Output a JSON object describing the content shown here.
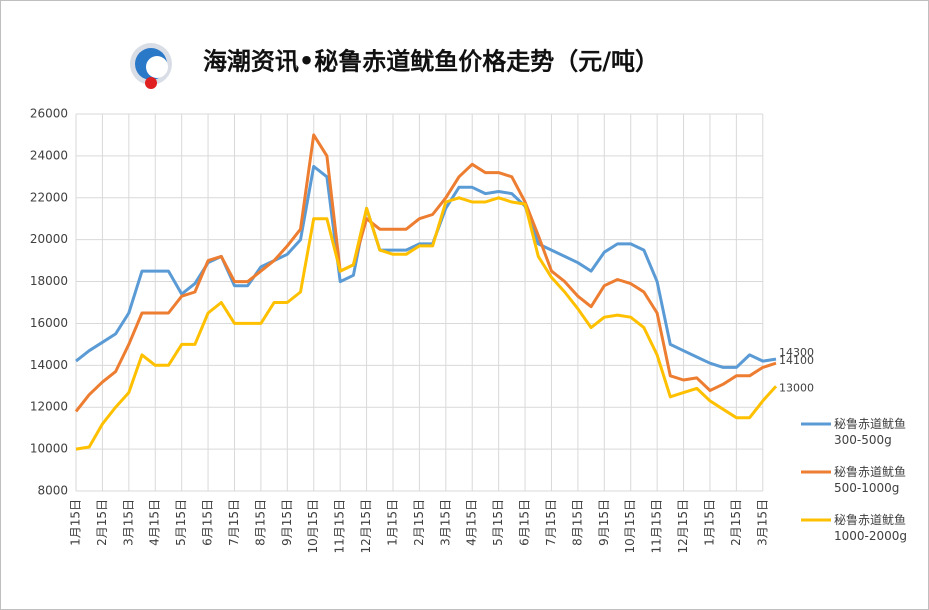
{
  "chart_data": {
    "type": "line",
    "title": "海潮资讯•秘鲁赤道鱿鱼价格走势（元/吨）",
    "categories": [
      "1月15日",
      null,
      "2月15日",
      null,
      "3月15日",
      null,
      "4月15日",
      null,
      "5月15日",
      null,
      "6月15日",
      null,
      "7月15日",
      null,
      "8月15日",
      null,
      "9月15日",
      null,
      "10月15日",
      null,
      "11月15日",
      null,
      "12月15日",
      null,
      "1月15日",
      null,
      "2月15日",
      null,
      "3月15日",
      null,
      "4月15日",
      null,
      "5月15日",
      null,
      "6月15日",
      null,
      "7月15日",
      null,
      "8月15日",
      null,
      "9月15日",
      null,
      "10月15日",
      null,
      "11月15日",
      null,
      "12月15日",
      null,
      "1月15日",
      null,
      "2月15日",
      null,
      "3月15日",
      null
    ],
    "series": [
      {
        "name": "秘鲁赤道鱿鱼 300-500g",
        "color": "#5b9bd5",
        "values": [
          14200,
          14700,
          15100,
          15500,
          16500,
          18500,
          18500,
          18500,
          17400,
          17900,
          18900,
          19200,
          17800,
          17800,
          18700,
          19000,
          19300,
          20000,
          23500,
          23000,
          18000,
          18300,
          21500,
          19500,
          19500,
          19500,
          19800,
          19800,
          21500,
          22500,
          22500,
          22200,
          22300,
          22200,
          21600,
          19800,
          19500,
          19200,
          18900,
          18500,
          19400,
          19800,
          19800,
          19500,
          18000,
          15000,
          14700,
          14400,
          14100,
          13900,
          13900,
          14500,
          14200,
          14300
        ]
      },
      {
        "name": "秘鲁赤道鱿鱼 500-1000g",
        "color": "#ed7d31",
        "values": [
          11800,
          12600,
          13200,
          13700,
          15000,
          16500,
          16500,
          16500,
          17300,
          17500,
          19000,
          19200,
          18000,
          18000,
          18500,
          19000,
          19700,
          20500,
          25000,
          24000,
          18500,
          18800,
          21000,
          20500,
          20500,
          20500,
          21000,
          21200,
          22000,
          23000,
          23600,
          23200,
          23200,
          23000,
          21800,
          20200,
          18500,
          18000,
          17300,
          16800,
          17800,
          18100,
          17900,
          17500,
          16500,
          13500,
          13300,
          13400,
          12800,
          13100,
          13500,
          13500,
          13900,
          14100
        ]
      },
      {
        "name": "秘鲁赤道鱿鱼 1000-2000g",
        "color": "#ffc000",
        "values": [
          10000,
          10100,
          11200,
          12000,
          12700,
          14500,
          14000,
          14000,
          15000,
          15000,
          16500,
          17000,
          16000,
          16000,
          16000,
          17000,
          17000,
          17500,
          21000,
          21000,
          18500,
          18800,
          21500,
          19500,
          19300,
          19300,
          19700,
          19700,
          21800,
          22000,
          21800,
          21800,
          22000,
          21800,
          21700,
          19200,
          18200,
          17500,
          16700,
          15800,
          16300,
          16400,
          16300,
          15800,
          14500,
          12500,
          12700,
          12900,
          12300,
          11900,
          11500,
          11500,
          12300,
          13000
        ]
      }
    ],
    "ylim": [
      8000,
      26000
    ],
    "yticks": [
      8000,
      10000,
      12000,
      14000,
      16000,
      18000,
      20000,
      22000,
      24000,
      26000
    ],
    "grid": true
  }
}
